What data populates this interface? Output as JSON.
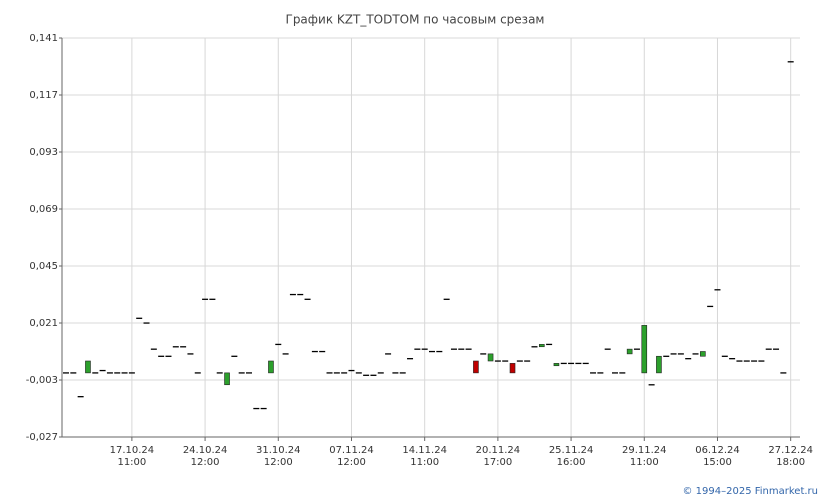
{
  "chart_data": {
    "type": "candlestick",
    "title": "График KZT_TODTOM по часовым срезам",
    "footer": "© 1994–2025 Finmarket.ru",
    "categories": [
      null,
      null,
      null,
      null,
      null,
      null,
      null,
      null,
      null,
      {
        "date": "17.10.24",
        "time": "11:00"
      },
      null,
      null,
      null,
      null,
      null,
      null,
      null,
      null,
      null,
      {
        "date": "24.10.24",
        "time": "12:00"
      },
      null,
      null,
      null,
      null,
      null,
      null,
      null,
      null,
      null,
      {
        "date": "31.10.24",
        "time": "12:00"
      },
      null,
      null,
      null,
      null,
      null,
      null,
      null,
      null,
      null,
      {
        "date": "07.11.24",
        "time": "12:00"
      },
      null,
      null,
      null,
      null,
      null,
      null,
      null,
      null,
      null,
      {
        "date": "14.11.24",
        "time": "11:00"
      },
      null,
      null,
      null,
      null,
      null,
      null,
      null,
      null,
      null,
      {
        "date": "20.11.24",
        "time": "17:00"
      },
      null,
      null,
      null,
      null,
      null,
      null,
      null,
      null,
      null,
      {
        "date": "25.11.24",
        "time": "16:00"
      },
      null,
      null,
      null,
      null,
      null,
      null,
      null,
      null,
      null,
      {
        "date": "29.11.24",
        "time": "11:00"
      },
      null,
      null,
      null,
      null,
      null,
      null,
      null,
      null,
      null,
      {
        "date": "06.12.24",
        "time": "15:00"
      },
      null,
      null,
      null,
      null,
      null,
      null,
      null,
      null,
      null,
      {
        "date": "27.12.24",
        "time": "18:00"
      }
    ],
    "open": [
      0,
      0,
      -0.01,
      0,
      0,
      0.001,
      0,
      0,
      0,
      0,
      0.023,
      0.021,
      0.01,
      0.007,
      0.007,
      0.011,
      0.011,
      0.008,
      0,
      0.031,
      0.031,
      0,
      -0.005,
      0.007,
      0,
      0,
      -0.015,
      -0.015,
      0,
      0.012,
      0.008,
      0.033,
      0.033,
      0.031,
      0.009,
      0.009,
      0,
      0,
      0,
      0.001,
      0,
      -0.001,
      -0.001,
      0,
      0.008,
      0,
      0,
      0.006,
      0.01,
      0.01,
      0.009,
      0.009,
      0.031,
      0.01,
      0.01,
      0.01,
      0.005,
      0.008,
      0.005,
      0.005,
      0.005,
      0.004,
      0.005,
      0.005,
      0.011,
      0.011,
      0.012,
      0.003,
      0.004,
      0.004,
      0.004,
      0.004,
      0,
      0,
      0.01,
      0,
      0,
      0.008,
      0.01,
      0,
      -0.005,
      0,
      0.007,
      0.008,
      0.008,
      0.006,
      0.008,
      0.007,
      0.028,
      0.035,
      0.007,
      0.006,
      0.005,
      0.005,
      0.005,
      0.005,
      0.01,
      0.01,
      0,
      0.131
    ],
    "close": [
      0,
      0,
      -0.01,
      0.005,
      0,
      0.001,
      0,
      0,
      0,
      0,
      0.023,
      0.021,
      0.01,
      0.007,
      0.007,
      0.011,
      0.011,
      0.008,
      0,
      0.031,
      0.031,
      0,
      0,
      0.007,
      0,
      0,
      -0.015,
      -0.015,
      0.005,
      0.012,
      0.008,
      0.033,
      0.033,
      0.031,
      0.009,
      0.009,
      0,
      0,
      0,
      0.001,
      0,
      -0.001,
      -0.001,
      0,
      0.008,
      0,
      0,
      0.006,
      0.01,
      0.01,
      0.009,
      0.009,
      0.031,
      0.01,
      0.01,
      0.01,
      0,
      0.008,
      0.008,
      0.005,
      0.005,
      0,
      0.005,
      0.005,
      0.011,
      0.012,
      0.012,
      0.004,
      0.004,
      0.004,
      0.004,
      0.004,
      0,
      0,
      0.01,
      0,
      0,
      0.01,
      0.01,
      0.02,
      -0.005,
      0.007,
      0.007,
      0.008,
      0.008,
      0.006,
      0.008,
      0.009,
      0.028,
      0.035,
      0.007,
      0.006,
      0.005,
      0.005,
      0.005,
      0.005,
      0.01,
      0.01,
      0,
      0.131
    ],
    "up_color": "#2ca02c",
    "down_color": "#c00000",
    "flat_color": "#000000",
    "ylim": [
      -0.027,
      0.141
    ],
    "yticks": [
      {
        "value": -0.027,
        "label": "-0,027"
      },
      {
        "value": -0.003,
        "label": "-0,003"
      },
      {
        "value": 0.021,
        "label": "0,021"
      },
      {
        "value": 0.045,
        "label": "0,045"
      },
      {
        "value": 0.069,
        "label": "0,069"
      },
      {
        "value": 0.093,
        "label": "0,093"
      },
      {
        "value": 0.117,
        "label": "0,117"
      },
      {
        "value": 0.141,
        "label": "0,141"
      }
    ],
    "grid": true
  }
}
